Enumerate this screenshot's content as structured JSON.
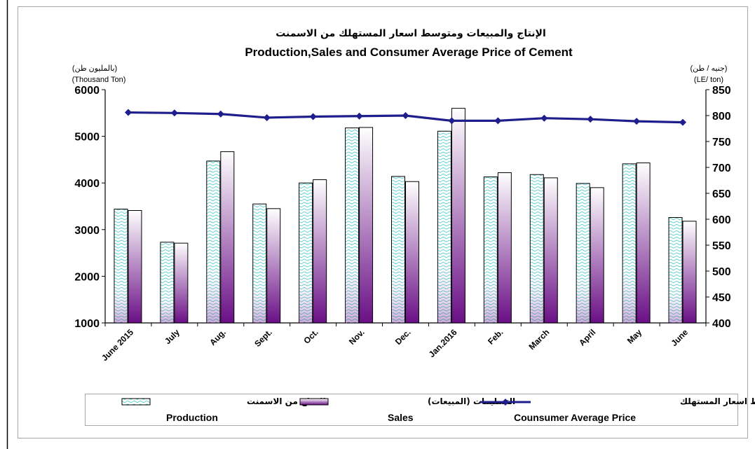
{
  "colors": {
    "production_pattern": "#35c7c7",
    "sales_top": "#ffffff",
    "sales_bottom": "#6a0f86",
    "price_line": "#1e1e8c",
    "axis": "#000000",
    "frame": "#9a9a9a"
  },
  "chart_data": {
    "type": "bar",
    "title": "الإنتاج والمبيعات ومتوسط اسعار المستهلك من الاسمنت",
    "subtitle": "Production,Sales and Consumer Average Price of Cement",
    "left_axis": {
      "label_ar": "(بالمليون طن)",
      "label_en": "(Thousand Ton)",
      "ylim": [
        1000,
        6000
      ],
      "ticks": [
        1000,
        2000,
        3000,
        4000,
        5000,
        6000
      ]
    },
    "right_axis": {
      "label_ar": "(جنيه / طن)",
      "label_en": "(LE/ ton)",
      "ylim": [
        400,
        850
      ],
      "ticks": [
        400,
        450,
        500,
        550,
        600,
        650,
        700,
        750,
        800,
        850
      ]
    },
    "grid": false,
    "legend_position": "bottom",
    "categories": [
      "June 2015",
      "July",
      "Aug.",
      "Sept.",
      "Oct.",
      "Nov.",
      "Dec.",
      "Jan.2016",
      "Feb.",
      "March",
      "April",
      "May",
      "June"
    ],
    "series": [
      {
        "name": "Production",
        "name_ar": "الانتاج من الاسمنت",
        "type": "bar",
        "axis": "left",
        "values": [
          3440,
          2730,
          4470,
          3550,
          4000,
          5180,
          4140,
          5110,
          4130,
          4180,
          3990,
          4410,
          3260
        ]
      },
      {
        "name": "Sales",
        "name_ar": "التسليمات (المبيعات)",
        "type": "bar",
        "axis": "left",
        "values": [
          3410,
          2710,
          4670,
          3450,
          4070,
          5190,
          4030,
          5600,
          4220,
          4110,
          3900,
          4430,
          3180
        ]
      },
      {
        "name": "Counsumer Average Price",
        "name_ar": "متوسط اسعار المستهلك",
        "type": "line",
        "axis": "right",
        "values": [
          806,
          805,
          803,
          796,
          798,
          799,
          800,
          790,
          790,
          795,
          793,
          789,
          787
        ]
      }
    ]
  }
}
